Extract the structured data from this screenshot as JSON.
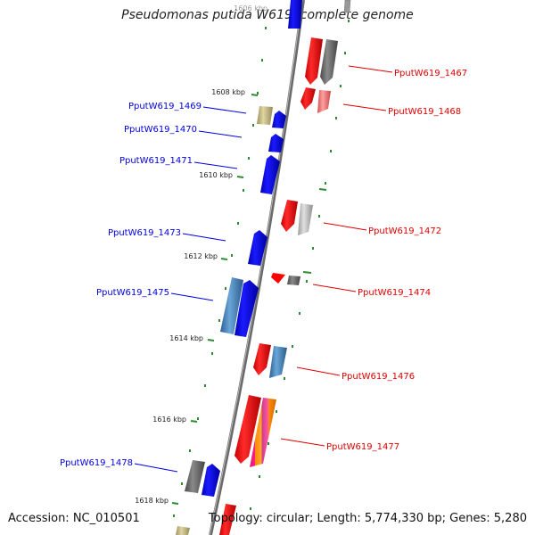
{
  "title": "Pseudomonas putida W619, complete genome",
  "footer": {
    "accession": "Accession: NC_010501",
    "summary": "Topology: circular; Length: 5,774,330 bp; Genes: 5,280"
  },
  "colors": {
    "backbone": "#8a8a8a",
    "tick": "#2e8b2e",
    "forward_label": "#e00000",
    "reverse_label": "#0000e0",
    "red": "#ff0000",
    "blue": "#0000ff",
    "dark_gray": "#6e6e6e",
    "light_gray": "#c0c0c0",
    "steel_blue": "#4a8ac4",
    "khaki": "#c8bd83",
    "pink": "#f47c7c"
  },
  "scale_labels": [
    "1606 kbp",
    "1608 kbp",
    "1610 kbp",
    "1612 kbp",
    "1614 kbp",
    "1616 kbp",
    "1618 kbp"
  ],
  "gene_labels": [
    {
      "name": "PputW619_1467",
      "strand": "forward"
    },
    {
      "name": "PputW619_1468",
      "strand": "forward"
    },
    {
      "name": "PputW619_1469",
      "strand": "reverse"
    },
    {
      "name": "PputW619_1470",
      "strand": "reverse"
    },
    {
      "name": "PputW619_1471",
      "strand": "reverse"
    },
    {
      "name": "PputW619_1472",
      "strand": "forward"
    },
    {
      "name": "PputW619_1473",
      "strand": "reverse"
    },
    {
      "name": "PputW619_1474",
      "strand": "forward"
    },
    {
      "name": "PputW619_1475",
      "strand": "reverse"
    },
    {
      "name": "PputW619_1476",
      "strand": "forward"
    },
    {
      "name": "PputW619_1477",
      "strand": "forward"
    },
    {
      "name": "PputW619_1478",
      "strand": "reverse"
    }
  ]
}
